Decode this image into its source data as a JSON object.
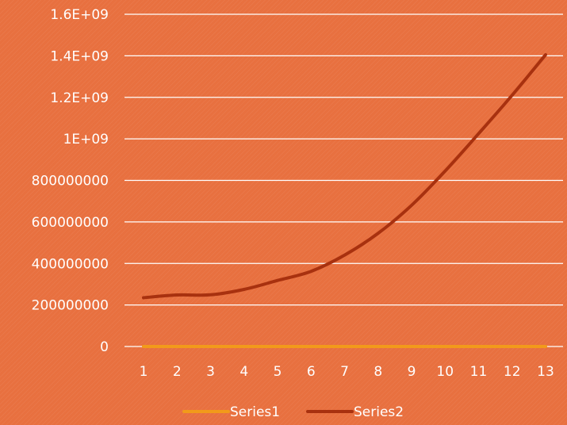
{
  "chart_data": {
    "type": "line",
    "title": "",
    "xlabel": "",
    "ylabel": "",
    "categories": [
      "1",
      "2",
      "3",
      "4",
      "5",
      "6",
      "7",
      "8",
      "9",
      "10",
      "11",
      "12",
      "13"
    ],
    "ylim": [
      0,
      1600000000
    ],
    "y_ticks": [
      {
        "value": 0,
        "label": "0"
      },
      {
        "value": 200000000,
        "label": "200000000"
      },
      {
        "value": 400000000,
        "label": "400000000"
      },
      {
        "value": 600000000,
        "label": "600000000"
      },
      {
        "value": 800000000,
        "label": "800000000"
      },
      {
        "value": 1000000000,
        "label": "1E+09"
      },
      {
        "value": 1200000000,
        "label": "1.2E+09"
      },
      {
        "value": 1400000000,
        "label": "1.4E+09"
      },
      {
        "value": 1600000000,
        "label": "1.6E+09"
      }
    ],
    "grid": true,
    "legend_position": "bottom",
    "series": [
      {
        "name": "Series1",
        "color": "#F29A1A",
        "values": [
          0,
          0,
          0,
          0,
          0,
          0,
          0,
          0,
          0,
          0,
          0,
          0,
          0
        ]
      },
      {
        "name": "Series2",
        "color": "#A8310F",
        "values": [
          235000000,
          248000000,
          249000000,
          275000000,
          318000000,
          362000000,
          440000000,
          545000000,
          680000000,
          845000000,
          1025000000,
          1210000000,
          1405000000
        ]
      }
    ]
  },
  "colors": {
    "background": "#E8703F",
    "gridline": "#FFFFFF",
    "text": "#FFFFFF"
  }
}
